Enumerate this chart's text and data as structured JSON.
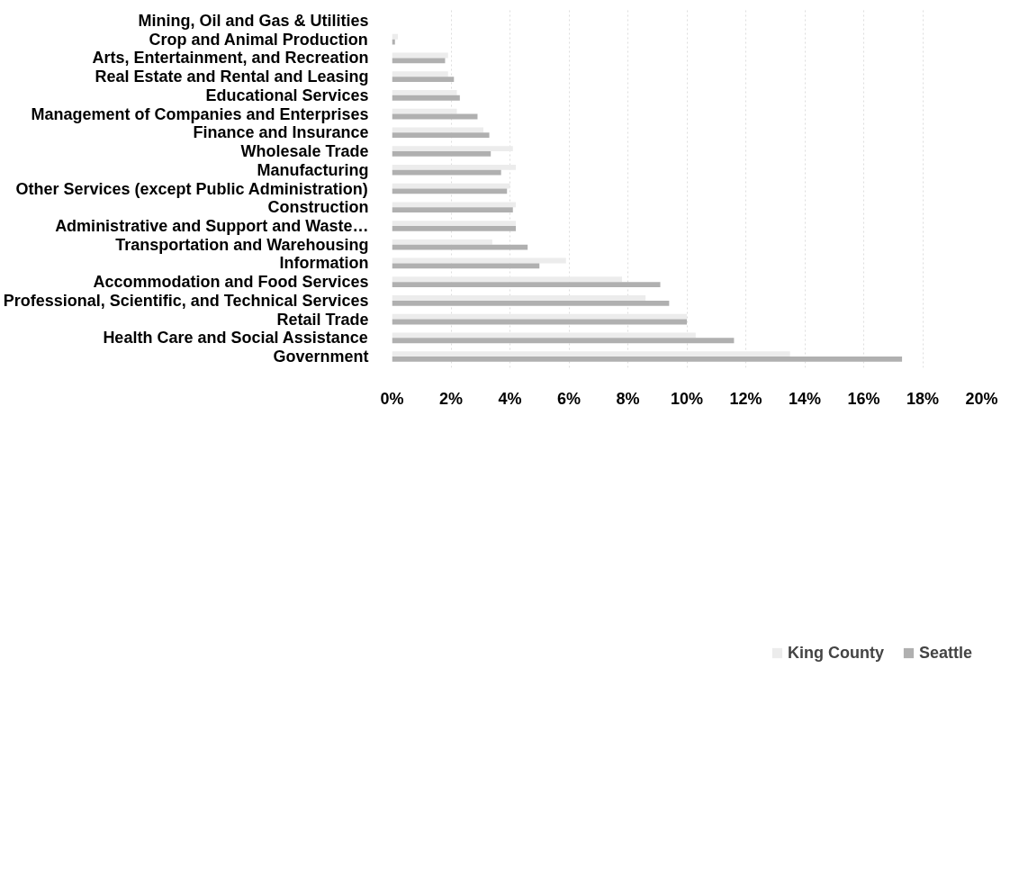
{
  "chart_data": {
    "type": "bar",
    "orientation": "horizontal",
    "categories": [
      "Mining, Oil and Gas & Utilities",
      "Crop and Animal Production",
      "Arts, Entertainment, and Recreation",
      "Real Estate and Rental and Leasing",
      "Educational Services",
      "Management of Companies and Enterprises",
      "Finance and Insurance",
      "Wholesale Trade",
      "Manufacturing",
      "Other Services (except Public Administration)",
      "Construction",
      "Administrative and Support and Waste…",
      "Transportation and Warehousing",
      "Information",
      "Accommodation and Food Services",
      "Professional, Scientific, and Technical Services",
      "Retail Trade",
      "Health Care and Social Assistance",
      "Government"
    ],
    "series": [
      {
        "name": "King County",
        "color": "#ececec",
        "values": [
          0,
          0.2,
          1.9,
          1.9,
          2.2,
          2.2,
          3.1,
          4.1,
          4.2,
          4.0,
          4.2,
          4.2,
          3.4,
          5.9,
          7.8,
          8.6,
          10.0,
          10.3,
          13.5
        ]
      },
      {
        "name": "Seattle",
        "color": "#b0b0b0",
        "values": [
          0,
          0.1,
          1.8,
          2.1,
          2.3,
          2.9,
          3.3,
          3.35,
          3.7,
          3.9,
          4.1,
          4.2,
          4.6,
          5.0,
          9.1,
          9.4,
          10.0,
          11.6,
          17.3
        ]
      }
    ],
    "xlim": [
      0,
      20
    ],
    "xticks": [
      {
        "value": 0,
        "label": "0%"
      },
      {
        "value": 2,
        "label": "2%"
      },
      {
        "value": 4,
        "label": "4%"
      },
      {
        "value": 6,
        "label": "6%"
      },
      {
        "value": 8,
        "label": "8%"
      },
      {
        "value": 10,
        "label": "10%"
      },
      {
        "value": 12,
        "label": "12%"
      },
      {
        "value": 14,
        "label": "14%"
      },
      {
        "value": 16,
        "label": "16%"
      },
      {
        "value": 18,
        "label": "18%"
      },
      {
        "value": 20,
        "label": "20%"
      }
    ],
    "grid": "x",
    "legend": "bottom"
  }
}
